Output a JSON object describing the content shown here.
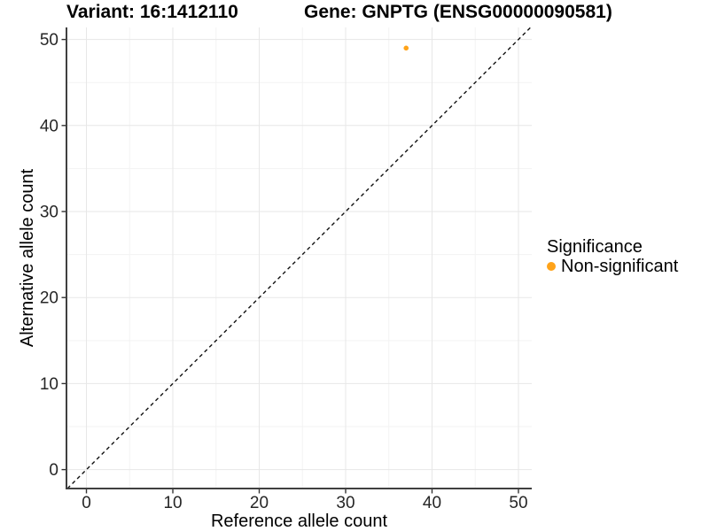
{
  "chart_data": {
    "type": "scatter",
    "title_left": "Variant: 16:1412110",
    "title_right": "Gene: GNPTG (ENSG00000090581)",
    "xlabel": "Reference allele count",
    "ylabel": "Alternative allele count",
    "xlim": [
      -2.31,
      51.54
    ],
    "ylim": [
      -2.2,
      51.4
    ],
    "xticks": [
      0,
      10,
      20,
      30,
      40,
      50
    ],
    "yticks": [
      0,
      10,
      20,
      30,
      40,
      50
    ],
    "xticks_minor": [
      5,
      15,
      25,
      35,
      45
    ],
    "yticks_minor": [
      5,
      15,
      25,
      35,
      45
    ],
    "grid": "major+minor",
    "points": [
      {
        "x": 37,
        "y": 49,
        "series": "Non-significant"
      }
    ],
    "reference_line": {
      "kind": "identity y=x",
      "style": "dashed"
    },
    "legend": {
      "title": "Significance",
      "position": "right",
      "items": [
        {
          "label": "Non-significant",
          "color": "#FFA319",
          "marker": "circle"
        }
      ]
    },
    "colors": {
      "point": "#FFA319",
      "background": "#FFFFFF",
      "grid_major": "#E7E7E7",
      "grid_minor": "#F3F3F3",
      "axis_line": "#404040",
      "tick_mark": "#333333",
      "tick_text": "#262626",
      "reference_line": "#111111"
    }
  }
}
